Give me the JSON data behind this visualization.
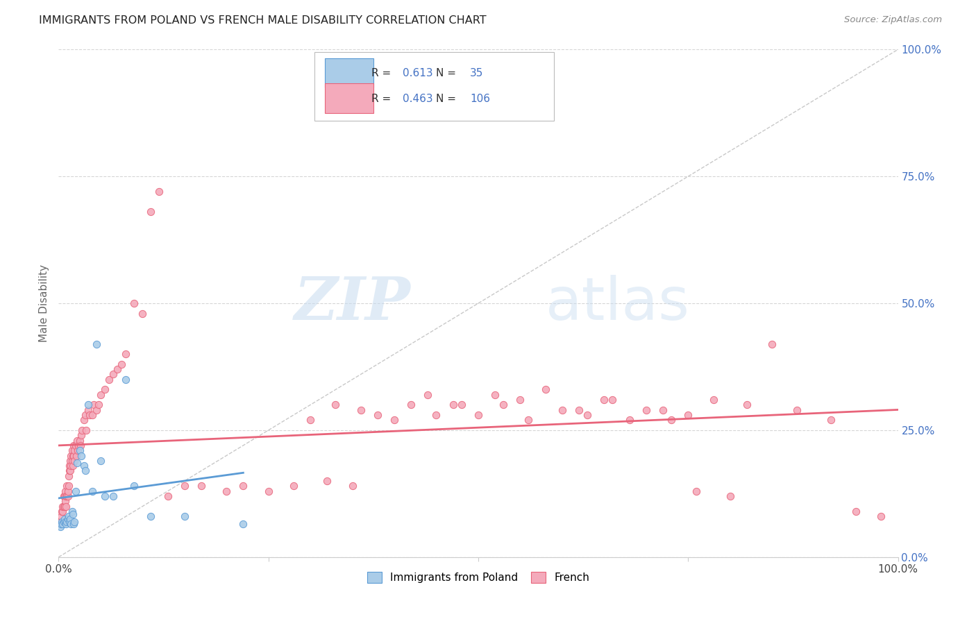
{
  "title": "IMMIGRANTS FROM POLAND VS FRENCH MALE DISABILITY CORRELATION CHART",
  "source": "Source: ZipAtlas.com",
  "ylabel": "Male Disability",
  "xlim": [
    0,
    1
  ],
  "ylim": [
    0,
    1
  ],
  "ytick_vals": [
    0.0,
    0.25,
    0.5,
    0.75,
    1.0
  ],
  "ytick_labels": [
    "0.0%",
    "25.0%",
    "50.0%",
    "75.0%",
    "100.0%"
  ],
  "xtick_vals": [
    0.0,
    0.25,
    0.5,
    0.75,
    1.0
  ],
  "xtick_labels": [
    "0.0%",
    "",
    "",
    "",
    "100.0%"
  ],
  "legend_r_blue": "0.613",
  "legend_n_blue": "35",
  "legend_r_pink": "0.463",
  "legend_n_pink": "106",
  "color_blue_fill": "#AACCE8",
  "color_blue_edge": "#5B9BD5",
  "color_pink_fill": "#F4AABB",
  "color_pink_edge": "#E8647A",
  "color_blue_line": "#5B9BD5",
  "color_pink_line": "#E8647A",
  "color_diag": "#BBBBBB",
  "watermark_zip": "ZIP",
  "watermark_atlas": "atlas",
  "blue_x": [
    0.002,
    0.003,
    0.004,
    0.005,
    0.006,
    0.007,
    0.008,
    0.009,
    0.01,
    0.011,
    0.012,
    0.013,
    0.014,
    0.015,
    0.016,
    0.017,
    0.018,
    0.019,
    0.02,
    0.022,
    0.025,
    0.027,
    0.03,
    0.032,
    0.035,
    0.04,
    0.045,
    0.05,
    0.055,
    0.065,
    0.08,
    0.09,
    0.11,
    0.15,
    0.22
  ],
  "blue_y": [
    0.06,
    0.065,
    0.07,
    0.065,
    0.07,
    0.075,
    0.07,
    0.065,
    0.07,
    0.075,
    0.08,
    0.07,
    0.075,
    0.065,
    0.09,
    0.085,
    0.065,
    0.07,
    0.13,
    0.185,
    0.21,
    0.2,
    0.18,
    0.17,
    0.3,
    0.13,
    0.42,
    0.19,
    0.12,
    0.12,
    0.35,
    0.14,
    0.08,
    0.08,
    0.065
  ],
  "pink_x": [
    0.002,
    0.003,
    0.004,
    0.005,
    0.005,
    0.006,
    0.006,
    0.007,
    0.007,
    0.008,
    0.008,
    0.009,
    0.009,
    0.01,
    0.01,
    0.011,
    0.011,
    0.012,
    0.012,
    0.013,
    0.013,
    0.014,
    0.014,
    0.015,
    0.015,
    0.016,
    0.016,
    0.017,
    0.017,
    0.018,
    0.018,
    0.019,
    0.019,
    0.02,
    0.021,
    0.022,
    0.023,
    0.024,
    0.025,
    0.026,
    0.027,
    0.028,
    0.03,
    0.032,
    0.033,
    0.035,
    0.037,
    0.04,
    0.042,
    0.045,
    0.048,
    0.05,
    0.055,
    0.06,
    0.065,
    0.07,
    0.075,
    0.08,
    0.09,
    0.1,
    0.11,
    0.12,
    0.13,
    0.15,
    0.17,
    0.2,
    0.22,
    0.25,
    0.28,
    0.32,
    0.35,
    0.38,
    0.42,
    0.45,
    0.48,
    0.52,
    0.55,
    0.58,
    0.62,
    0.65,
    0.68,
    0.72,
    0.75,
    0.78,
    0.82,
    0.85,
    0.88,
    0.92,
    0.95,
    0.98,
    0.3,
    0.33,
    0.36,
    0.4,
    0.44,
    0.47,
    0.5,
    0.53,
    0.56,
    0.6,
    0.63,
    0.66,
    0.7,
    0.73,
    0.76,
    0.8
  ],
  "pink_y": [
    0.07,
    0.08,
    0.09,
    0.09,
    0.1,
    0.1,
    0.12,
    0.1,
    0.12,
    0.11,
    0.13,
    0.1,
    0.12,
    0.12,
    0.14,
    0.12,
    0.13,
    0.14,
    0.16,
    0.17,
    0.18,
    0.17,
    0.19,
    0.18,
    0.2,
    0.19,
    0.21,
    0.18,
    0.2,
    0.2,
    0.22,
    0.19,
    0.21,
    0.22,
    0.2,
    0.23,
    0.21,
    0.22,
    0.23,
    0.22,
    0.24,
    0.25,
    0.27,
    0.28,
    0.25,
    0.29,
    0.28,
    0.28,
    0.3,
    0.29,
    0.3,
    0.32,
    0.33,
    0.35,
    0.36,
    0.37,
    0.38,
    0.4,
    0.5,
    0.48,
    0.68,
    0.72,
    0.12,
    0.14,
    0.14,
    0.13,
    0.14,
    0.13,
    0.14,
    0.15,
    0.14,
    0.28,
    0.3,
    0.28,
    0.3,
    0.32,
    0.31,
    0.33,
    0.29,
    0.31,
    0.27,
    0.29,
    0.28,
    0.31,
    0.3,
    0.42,
    0.29,
    0.27,
    0.09,
    0.08,
    0.27,
    0.3,
    0.29,
    0.27,
    0.32,
    0.3,
    0.28,
    0.3,
    0.27,
    0.29,
    0.28,
    0.31,
    0.29,
    0.27,
    0.13,
    0.12
  ]
}
